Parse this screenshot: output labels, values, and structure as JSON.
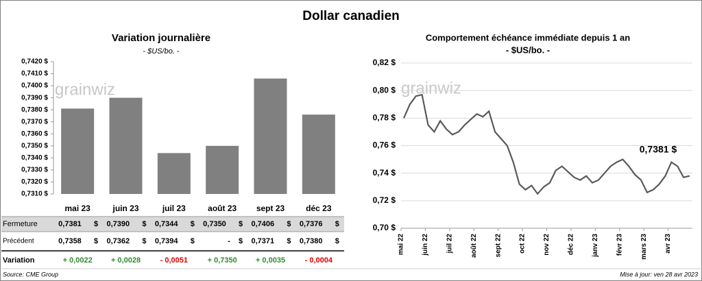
{
  "title": "Dollar canadien",
  "watermark": "grainwiz",
  "source": "Source: CME Group",
  "updated": "Mise à jour: ven 28 avr 2023",
  "chart_data": [
    {
      "type": "bar",
      "title": "Variation  journalière",
      "subtitle": "- $US/bo. -",
      "categories": [
        "mai 23",
        "juin 23",
        "juil 23",
        "août 23",
        "sept 23",
        "déc 23"
      ],
      "values": [
        0.7381,
        0.739,
        0.7344,
        0.735,
        0.7406,
        0.7376
      ],
      "value_labels": [
        "0,7381",
        "0,7390",
        "0,7344",
        "0,7350",
        "0,7406",
        "0,7376"
      ],
      "color": "#808080",
      "ylim": [
        0.731,
        0.742
      ],
      "yticks": [
        {
          "value": 0.731,
          "label": "0,7310 $"
        },
        {
          "value": 0.732,
          "label": "0,7320 $"
        },
        {
          "value": 0.733,
          "label": "0,7330 $"
        },
        {
          "value": 0.734,
          "label": "0,7340 $"
        },
        {
          "value": 0.735,
          "label": "0,7350 $"
        },
        {
          "value": 0.736,
          "label": "0,7360 $"
        },
        {
          "value": 0.737,
          "label": "0,7370 $"
        },
        {
          "value": 0.738,
          "label": "0,7380 $"
        },
        {
          "value": 0.739,
          "label": "0,7390 $"
        },
        {
          "value": 0.74,
          "label": "0,7400 $"
        },
        {
          "value": 0.741,
          "label": "0,7410 $"
        },
        {
          "value": 0.742,
          "label": "0,7420 $"
        }
      ],
      "table": {
        "unit": "$",
        "close_label": "Fermeture",
        "previous_label": "Précédent",
        "previous": [
          "0,7358",
          "0,7362",
          "0,7394",
          "-",
          "0,7371",
          "0,7380"
        ],
        "change_label": "Variation",
        "change": [
          "+ 0,0022",
          "+ 0,0028",
          "- 0,0051",
          "+ 0,7350",
          "+ 0,0035",
          "- 0,0004"
        ],
        "positive_color": "#2e8b2e",
        "negative_color": "#e00000"
      }
    },
    {
      "type": "line",
      "title": "Comportement échéance immédiate depuis 1 an",
      "subtitle": "- $US/bo. -",
      "xticks": [
        "mai 22",
        "juin 22",
        "juil 22",
        "août 22",
        "sept 22",
        "oct 22",
        "nov 22",
        "déc 22",
        "janv 23",
        "févr 23",
        "mars 23",
        "avr 23"
      ],
      "color": "#595959",
      "values": [
        0.78,
        0.79,
        0.796,
        0.797,
        0.775,
        0.77,
        0.778,
        0.772,
        0.768,
        0.77,
        0.775,
        0.779,
        0.783,
        0.781,
        0.785,
        0.77,
        0.765,
        0.76,
        0.748,
        0.732,
        0.728,
        0.731,
        0.725,
        0.73,
        0.733,
        0.742,
        0.745,
        0.741,
        0.737,
        0.735,
        0.738,
        0.733,
        0.735,
        0.74,
        0.745,
        0.748,
        0.75,
        0.745,
        0.739,
        0.735,
        0.726,
        0.728,
        0.732,
        0.738,
        0.748,
        0.745,
        0.737,
        0.738
      ],
      "annotation": "0,7381 $",
      "ylim": [
        0.7,
        0.82
      ],
      "yticks": [
        {
          "value": 0.7,
          "label": "0,70 $"
        },
        {
          "value": 0.72,
          "label": "0,72 $"
        },
        {
          "value": 0.74,
          "label": "0,74 $"
        },
        {
          "value": 0.76,
          "label": "0,76 $"
        },
        {
          "value": 0.78,
          "label": "0,78 $"
        },
        {
          "value": 0.8,
          "label": "0,80 $"
        },
        {
          "value": 0.82,
          "label": "0,82 $"
        }
      ],
      "grid": true
    }
  ]
}
